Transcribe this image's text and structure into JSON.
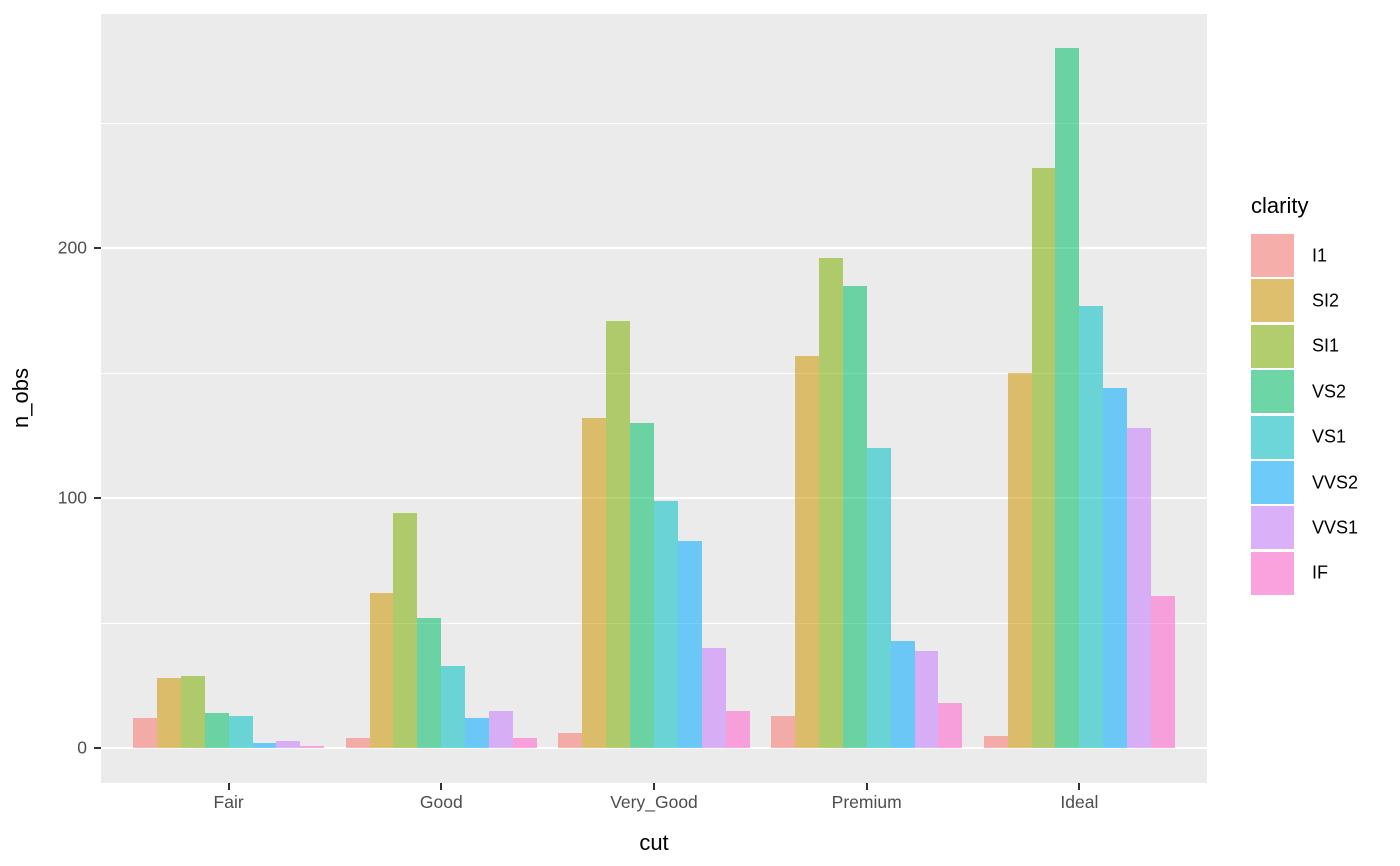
{
  "chart_data": {
    "type": "bar",
    "title": "",
    "xlabel": "cut",
    "ylabel": "n_obs",
    "legend_title": "clarity",
    "legend_position": "right",
    "categories": [
      "Fair",
      "Good",
      "Very_Good",
      "Premium",
      "Ideal"
    ],
    "series": [
      {
        "name": "I1",
        "color": "#F8766D",
        "values": [
          12,
          4,
          6,
          13,
          5
        ]
      },
      {
        "name": "SI2",
        "color": "#CD9600",
        "values": [
          28,
          62,
          132,
          157,
          150
        ]
      },
      {
        "name": "SI1",
        "color": "#7CAE00",
        "values": [
          29,
          94,
          171,
          196,
          232
        ]
      },
      {
        "name": "VS2",
        "color": "#00BE67",
        "values": [
          14,
          52,
          130,
          185,
          280
        ]
      },
      {
        "name": "VS1",
        "color": "#00BFC4",
        "values": [
          13,
          33,
          99,
          120,
          177
        ]
      },
      {
        "name": "VVS2",
        "color": "#00A9FF",
        "values": [
          2,
          12,
          83,
          43,
          144
        ]
      },
      {
        "name": "VVS1",
        "color": "#C77CFF",
        "values": [
          3,
          15,
          40,
          39,
          128
        ]
      },
      {
        "name": "IF",
        "color": "#FF61CC",
        "values": [
          1,
          4,
          15,
          18,
          61
        ]
      }
    ],
    "y_ticks": [
      0,
      100,
      200
    ],
    "y_minor_gridlines": [
      50,
      150,
      250
    ],
    "ylim": [
      -14,
      294
    ],
    "bar_alpha": 0.55,
    "panel_bg": "#EBEBEB",
    "grid_color": "#FFFFFF",
    "grid": "on"
  }
}
